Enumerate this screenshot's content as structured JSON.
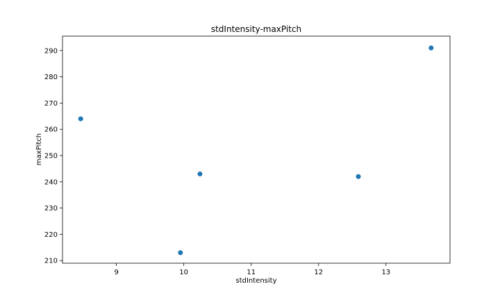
{
  "chart_data": {
    "type": "scatter",
    "title": "stdIntensity-maxPitch",
    "xlabel": "stdIntensity",
    "ylabel": "maxPitch",
    "xlim": [
      8.2,
      13.95
    ],
    "ylim": [
      209,
      295.5
    ],
    "xticks": [
      9,
      10,
      11,
      12,
      13
    ],
    "yticks": [
      210,
      220,
      230,
      240,
      250,
      260,
      270,
      280,
      290
    ],
    "grid": false,
    "legend": "none",
    "series": [
      {
        "color": "#1f77b4",
        "points": [
          {
            "x": 8.47,
            "y": 264
          },
          {
            "x": 9.95,
            "y": 213
          },
          {
            "x": 10.24,
            "y": 243
          },
          {
            "x": 12.59,
            "y": 242
          },
          {
            "x": 13.67,
            "y": 291
          }
        ]
      }
    ]
  }
}
